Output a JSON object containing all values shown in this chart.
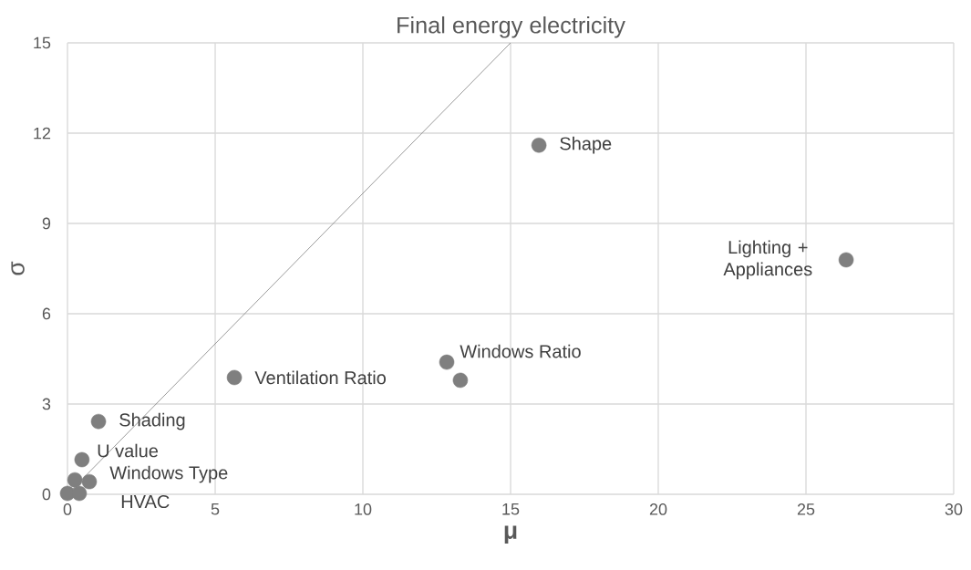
{
  "chart_data": {
    "type": "scatter",
    "title": "Final energy electricity",
    "xlabel": "μ",
    "ylabel": "σ",
    "xlim": [
      0,
      30
    ],
    "xticks": [
      0,
      5,
      10,
      15,
      20,
      25,
      30
    ],
    "ylim": [
      0,
      15
    ],
    "yticks": [
      0,
      3,
      6,
      9,
      12,
      15
    ],
    "grid": true,
    "marker": "circle",
    "series": [
      {
        "color": "#7f7f7f",
        "x": [
          15.96,
          26.36,
          12.84,
          13.3,
          5.65,
          1.05,
          0.49,
          0.25,
          0.74,
          0.0,
          0.4
        ],
        "values": [
          11.6,
          7.79,
          4.39,
          3.79,
          3.88,
          2.42,
          1.15,
          0.48,
          0.42,
          0.03,
          0.03
        ]
      },
      {
        "type": "line",
        "color": "#808080",
        "marker": "none",
        "x": [
          0,
          15
        ],
        "values": [
          0,
          15
        ]
      }
    ],
    "annotations": [
      {
        "text": "Shape",
        "x": 15.96,
        "y": 11.6
      },
      {
        "text": "Lighting + Appliances",
        "x": 26.36,
        "y": 7.79
      },
      {
        "text": "Windows Ratio",
        "x": 12.84,
        "y": 4.39
      },
      {
        "text": "Ventilation Ratio",
        "x": 5.65,
        "y": 3.88
      },
      {
        "text": "Shading",
        "x": 1.05,
        "y": 2.42
      },
      {
        "text": "U value",
        "x": 0.49,
        "y": 1.15
      },
      {
        "text": "Windows Type",
        "x": 0.74,
        "y": 0.42
      },
      {
        "text": "HVAC",
        "x": 0.4,
        "y": 0.03
      }
    ]
  }
}
